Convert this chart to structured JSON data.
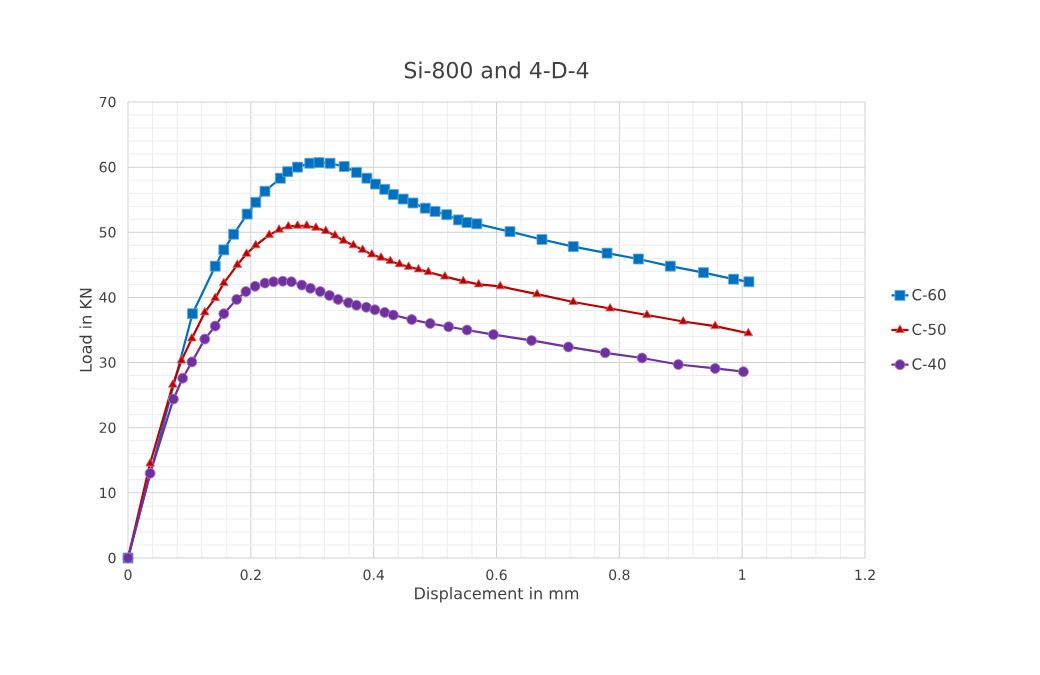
{
  "chart_data": {
    "type": "line",
    "title": "Si-800 and 4-D-4",
    "xlabel": "Displacement in mm",
    "ylabel": "Load in KN",
    "xlim": [
      0,
      1.2
    ],
    "xticks": [
      0,
      0.2,
      0.4,
      0.6,
      0.8,
      1,
      1.2
    ],
    "ylim": [
      0,
      70
    ],
    "yticks": [
      0,
      10,
      20,
      30,
      40,
      50,
      60,
      70
    ],
    "grid": true,
    "legend": "right",
    "line_style": "solid",
    "series": [
      {
        "name": "C-60",
        "color": "#0070c0",
        "marker": "square",
        "x": [
          0,
          0.105,
          0.142,
          0.156,
          0.172,
          0.194,
          0.208,
          0.223,
          0.248,
          0.26,
          0.276,
          0.296,
          0.311,
          0.329,
          0.352,
          0.372,
          0.389,
          0.403,
          0.418,
          0.432,
          0.448,
          0.464,
          0.484,
          0.5,
          0.519,
          0.538,
          0.552,
          0.568,
          0.622,
          0.674,
          0.725,
          0.78,
          0.831,
          0.883,
          0.937,
          0.986,
          1.011
        ],
        "values": [
          0,
          37.5,
          44.8,
          47.3,
          49.7,
          52.8,
          54.6,
          56.3,
          58.3,
          59.3,
          60.0,
          60.6,
          60.7,
          60.6,
          60.1,
          59.2,
          58.3,
          57.4,
          56.6,
          55.8,
          55.1,
          54.5,
          53.7,
          53.2,
          52.7,
          51.9,
          51.5,
          51.3,
          50.1,
          48.9,
          47.8,
          46.8,
          45.9,
          44.8,
          43.8,
          42.8,
          42.4
        ]
      },
      {
        "name": "C-50",
        "color": "#c00000",
        "marker": "triangle",
        "x": [
          0,
          0.036,
          0.073,
          0.087,
          0.104,
          0.125,
          0.142,
          0.156,
          0.178,
          0.193,
          0.208,
          0.23,
          0.246,
          0.261,
          0.276,
          0.291,
          0.306,
          0.322,
          0.337,
          0.351,
          0.367,
          0.382,
          0.397,
          0.412,
          0.427,
          0.442,
          0.457,
          0.473,
          0.489,
          0.516,
          0.546,
          0.571,
          0.606,
          0.666,
          0.725,
          0.785,
          0.845,
          0.904,
          0.956,
          1.01
        ],
        "values": [
          0,
          14.5,
          26.6,
          30.3,
          33.7,
          37.7,
          39.9,
          42.2,
          45.0,
          46.7,
          48.0,
          49.6,
          50.4,
          50.9,
          51.0,
          51.0,
          50.7,
          50.2,
          49.5,
          48.7,
          48.0,
          47.3,
          46.6,
          46.1,
          45.6,
          45.1,
          44.7,
          44.3,
          43.9,
          43.2,
          42.5,
          42.0,
          41.7,
          40.5,
          39.3,
          38.3,
          37.3,
          36.3,
          35.6,
          34.5
        ]
      },
      {
        "name": "C-40",
        "color": "#7030a0",
        "marker": "circle",
        "x": [
          0,
          0.036,
          0.074,
          0.089,
          0.104,
          0.125,
          0.142,
          0.156,
          0.177,
          0.192,
          0.207,
          0.223,
          0.237,
          0.252,
          0.266,
          0.283,
          0.297,
          0.313,
          0.328,
          0.342,
          0.359,
          0.372,
          0.388,
          0.402,
          0.418,
          0.432,
          0.462,
          0.492,
          0.522,
          0.552,
          0.595,
          0.657,
          0.717,
          0.777,
          0.837,
          0.896,
          0.956,
          1.002
        ],
        "values": [
          0,
          13.0,
          24.4,
          27.6,
          30.1,
          33.6,
          35.6,
          37.5,
          39.7,
          40.9,
          41.7,
          42.2,
          42.4,
          42.5,
          42.4,
          41.9,
          41.4,
          40.9,
          40.3,
          39.7,
          39.2,
          38.8,
          38.5,
          38.1,
          37.7,
          37.3,
          36.6,
          36.0,
          35.5,
          35.0,
          34.3,
          33.4,
          32.4,
          31.5,
          30.7,
          29.7,
          29.1,
          28.6
        ]
      }
    ]
  }
}
